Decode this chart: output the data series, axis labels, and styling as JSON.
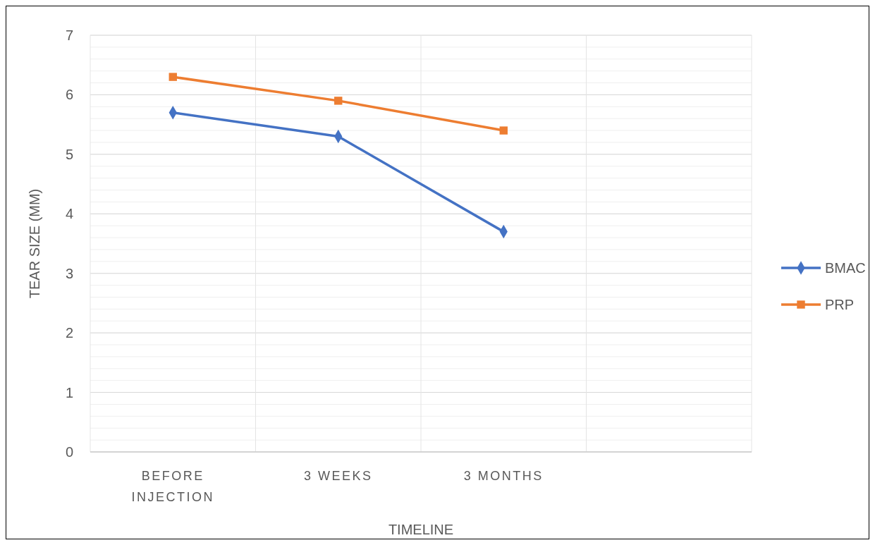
{
  "chart_data": {
    "type": "line",
    "xlabel": "TIMELINE",
    "ylabel": "TEAR SIZE (MM)",
    "categories": [
      "BEFORE INJECTION",
      "3 WEEKS",
      "3 MONTHS",
      null
    ],
    "series": [
      {
        "name": "BMAC",
        "color": "#4472c4",
        "marker": "diamond",
        "values": [
          5.7,
          5.3,
          3.7,
          null
        ]
      },
      {
        "name": "PRP",
        "color": "#ed7d31",
        "marker": "square",
        "values": [
          6.3,
          5.9,
          5.4,
          null
        ]
      }
    ],
    "ylim": [
      0,
      7
    ],
    "yticks": [
      0,
      1,
      2,
      3,
      4,
      5,
      6,
      7
    ],
    "grid": true,
    "legend": "right"
  }
}
